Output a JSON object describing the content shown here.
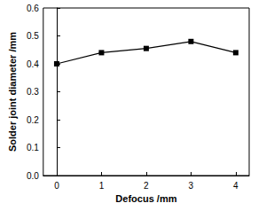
{
  "chart_data": {
    "type": "line",
    "x": [
      0,
      1,
      2,
      3,
      4
    ],
    "values": [
      0.4,
      0.44,
      0.455,
      0.48,
      0.44
    ],
    "color": "#000000",
    "marker": "square",
    "xlabel": "Defocus /mm",
    "ylabel": "Solder joint diameter /mm",
    "xlim": [
      -0.3,
      4.3
    ],
    "xticks": [
      0,
      1,
      2,
      3,
      4
    ],
    "ylim": [
      0,
      0.6
    ],
    "yticks": [
      {
        "value": 0,
        "label": "0.0"
      },
      0.1,
      0.2,
      0.3,
      0.4,
      0.5,
      0.6
    ],
    "grid": false
  }
}
